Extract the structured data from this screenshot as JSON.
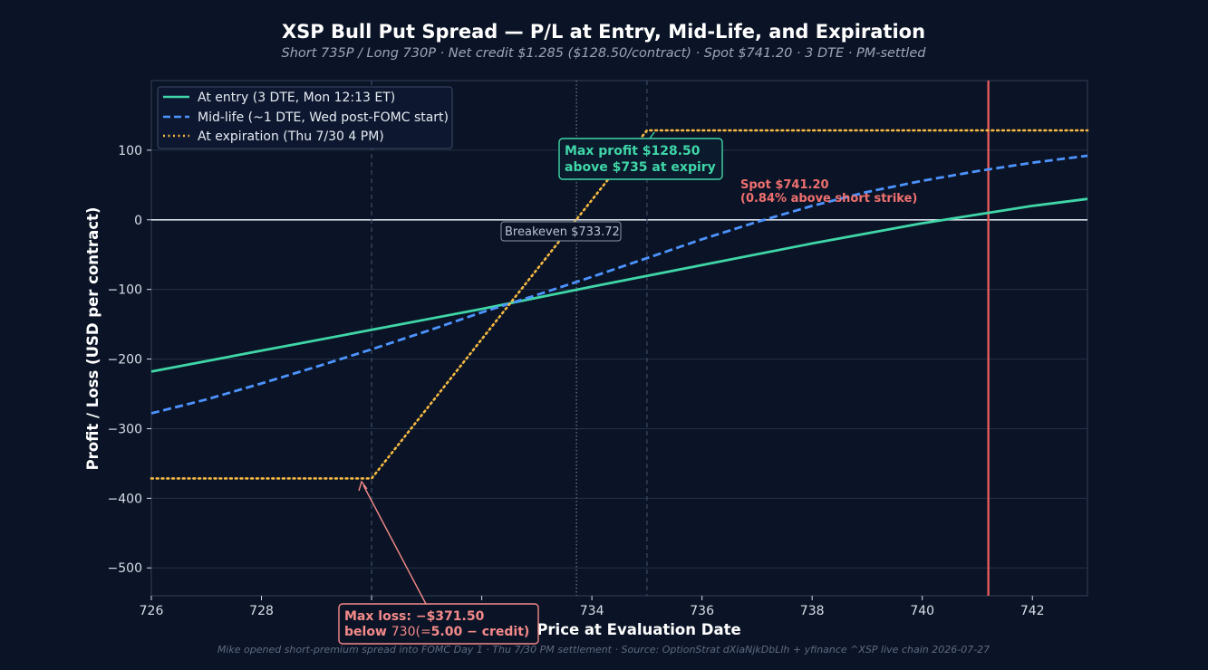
{
  "chart_data": {
    "type": "line",
    "title": "XSP Bull Put Spread — P/L at Entry, Mid-Life, and Expiration",
    "subtitle": "Short 735P / Long 730P · Net credit $1.285 ($128.50/contract) · Spot $741.20 · 3 DTE · PM-settled",
    "xlabel": "Price at Evaluation Date",
    "ylabel": "Profit / Loss (USD per contract)",
    "footer": "Mike opened short-premium spread into FOMC Day 1 · Thu 7/30 PM settlement · Source: OptionStrat dXiaNjkDbLlh + yfinance ^XSP live chain 2026-07-27",
    "xlim": [
      726,
      743
    ],
    "ylim": [
      -540,
      200
    ],
    "x_ticks": [
      726,
      728,
      730,
      732,
      734,
      736,
      738,
      740,
      742
    ],
    "y_ticks": [
      100,
      0,
      -100,
      -200,
      -300,
      -400,
      -500
    ],
    "y_tick_labels": [
      "100",
      "0",
      "−100",
      "−200",
      "−300",
      "−400",
      "−500"
    ],
    "grid": true,
    "legend_position": "top-left",
    "series": [
      {
        "name": "At entry (3 DTE, Mon 12:13 ET)",
        "color": "#3fd6a8",
        "style": "solid",
        "x": [
          726,
          728,
          730,
          732,
          734,
          736,
          738,
          740,
          742,
          743
        ],
        "y": [
          -218,
          -188,
          -158,
          -128,
          -96,
          -65,
          -34,
          -5,
          20,
          30
        ]
      },
      {
        "name": "Mid-life (~1 DTE, Wed post-FOMC start)",
        "color": "#4d94ff",
        "style": "dashed",
        "x": [
          726,
          727,
          728,
          729,
          730,
          731,
          732,
          733,
          734,
          735,
          736,
          737,
          738,
          739,
          740,
          741,
          742,
          743
        ],
        "y": [
          -278,
          -258,
          -235,
          -211,
          -186,
          -160,
          -133,
          -108,
          -82,
          -55,
          -28,
          -3,
          20,
          40,
          56,
          70,
          82,
          92
        ]
      },
      {
        "name": "At expiration (Thu 7/30 4 PM)",
        "color": "#f5b942",
        "style": "dotted",
        "x": [
          726,
          730,
          735,
          743
        ],
        "y": [
          -371.5,
          -371.5,
          128.5,
          128.5
        ]
      }
    ],
    "vertical_lines": [
      {
        "x": 730,
        "style": "dashed",
        "color": "#3a4a66"
      },
      {
        "x": 733.72,
        "style": "dotted",
        "color": "#6f7d95"
      },
      {
        "x": 735,
        "style": "dashed",
        "color": "#3a4a66"
      },
      {
        "x": 741.2,
        "style": "solid",
        "color": "#e05a5a"
      }
    ],
    "annotations": {
      "max_profit": {
        "line1": "Max profit $128.50",
        "line2": "above $735 at expiry",
        "x": 735,
        "y": 128.5,
        "color": "#3fd6a8"
      },
      "breakeven": {
        "text": "Breakeven $733.72",
        "x": 733.72,
        "y": 0
      },
      "spot": {
        "line1": "Spot $741.20",
        "line2": "(0.84% above short strike)",
        "color": "#f07070"
      },
      "max_loss": {
        "line1": "Max loss: −$371.50",
        "line2_a": "below ",
        "line2_b": "730(",
        "line2_c": "=",
        "line2_d": "5.00 − credit)",
        "x": 730,
        "y": -371.5,
        "color": "#f58a8a"
      }
    }
  }
}
